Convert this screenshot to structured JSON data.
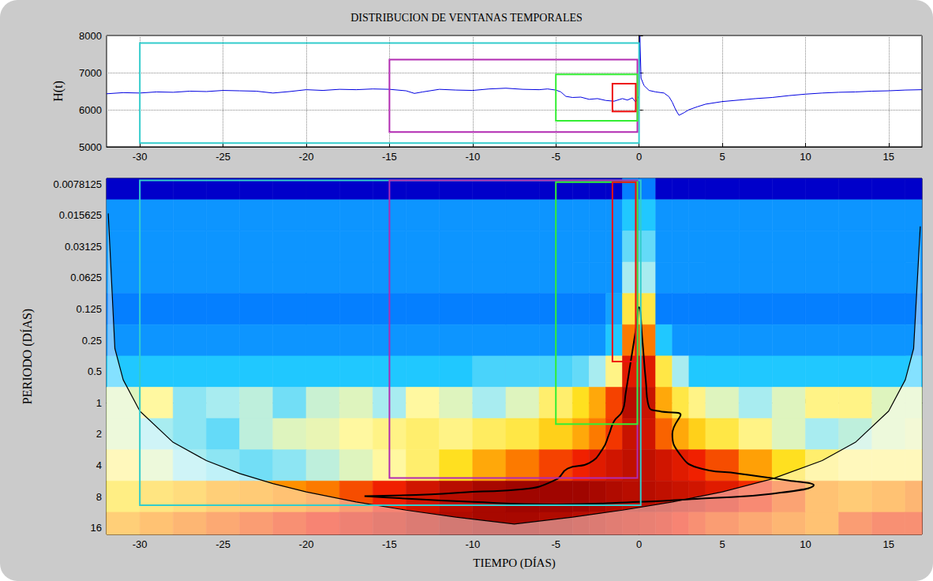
{
  "chart_data": [
    {
      "type": "line",
      "title": "DISTRIBUCION DE VENTANAS TEMPORALES",
      "ylabel": "H(t)",
      "x": [
        -32,
        -31,
        -30,
        -29,
        -28,
        -27,
        -26,
        -25,
        -24,
        -23,
        -22,
        -21,
        -20,
        -19,
        -18,
        -17,
        -16,
        -15,
        -14,
        -13.5,
        -13,
        -12,
        -11,
        -10,
        -9,
        -8,
        -7,
        -6,
        -5.5,
        -5,
        -4.7,
        -4.4,
        -4,
        -3.5,
        -3,
        -2.5,
        -2,
        -1.5,
        -1,
        -0.7,
        -0.4,
        -0.2,
        0,
        0.05,
        0.12,
        0.3,
        0.6,
        1,
        1.5,
        1.8,
        2,
        2.2,
        2.4,
        2.7,
        3,
        3.5,
        4,
        5,
        6,
        7,
        8,
        9,
        10,
        11,
        12,
        13,
        14,
        15,
        16,
        17
      ],
      "values": [
        6430,
        6460,
        6450,
        6480,
        6470,
        6500,
        6490,
        6520,
        6510,
        6500,
        6450,
        6490,
        6540,
        6520,
        6550,
        6540,
        6560,
        6550,
        6510,
        6440,
        6480,
        6550,
        6530,
        6520,
        6560,
        6580,
        6550,
        6540,
        6560,
        6530,
        6480,
        6360,
        6330,
        6340,
        6280,
        6300,
        6250,
        6230,
        6300,
        6260,
        6320,
        6200,
        6380,
        7980,
        6850,
        6650,
        6520,
        6480,
        6450,
        6350,
        6200,
        6000,
        5850,
        5920,
        6000,
        6080,
        6150,
        6220,
        6260,
        6300,
        6330,
        6380,
        6420,
        6450,
        6470,
        6480,
        6500,
        6510,
        6530,
        6540
      ],
      "color": "#0000e0",
      "xlim": [
        -32,
        17
      ],
      "xticks": [
        -30,
        -25,
        -20,
        -15,
        -10,
        -5,
        0,
        5,
        10,
        15
      ],
      "ylim": [
        5000,
        8000
      ],
      "yticks": [
        5000,
        6000,
        7000,
        8000
      ],
      "grid": true,
      "windows": [
        {
          "color": "#33cccc",
          "xlim": [
            -30,
            0
          ],
          "ylim": [
            5100,
            7800
          ]
        },
        {
          "color": "#b22bb2",
          "xlim": [
            -15,
            -0.1
          ],
          "ylim": [
            5400,
            7350
          ]
        },
        {
          "color": "#33ee33",
          "xlim": [
            -5,
            -0.1
          ],
          "ylim": [
            5700,
            6950
          ]
        },
        {
          "color": "#ee1111",
          "xlim": [
            -1.6,
            -0.2
          ],
          "ylim": [
            5950,
            6700
          ]
        }
      ]
    },
    {
      "type": "heatmap",
      "xlabel": "TIEMPO (DÍAS)",
      "ylabel": "PERIODO (DÍAS)",
      "log": "y",
      "grid": false,
      "xlim": [
        -32,
        17
      ],
      "xticks": [
        -30,
        -25,
        -20,
        -15,
        -10,
        -5,
        0,
        5,
        10,
        15
      ],
      "ylim": [
        0.0069,
        18.5
      ],
      "yticks": [
        0.0078125,
        0.015625,
        0.03125,
        0.0625,
        0.125,
        0.25,
        0.5,
        1,
        2,
        4,
        8,
        16
      ],
      "zlim": [
        0,
        10
      ],
      "time_edges": [
        -32,
        -30,
        -28,
        -26,
        -24,
        -22,
        -20,
        -18,
        -16,
        -14,
        -12,
        -10,
        -8,
        -6,
        -4,
        -3,
        -2,
        -1,
        0,
        1,
        2,
        3,
        4,
        6,
        8,
        10,
        12,
        14,
        16,
        18
      ],
      "period_edges": [
        0.0055243,
        0.0110485,
        0.0220971,
        0.0441942,
        0.0883883,
        0.1767767,
        0.3535534,
        0.7071068,
        1.4142136,
        2.8284271,
        5.6568542,
        11.3137085,
        22.627417
      ],
      "power": [
        [
          1,
          1,
          1,
          1,
          1,
          1,
          1,
          1,
          1,
          1,
          1,
          1,
          1,
          1,
          1,
          1,
          1,
          3,
          3,
          1,
          1,
          1,
          1,
          1,
          1,
          1,
          1,
          1,
          1
        ],
        [
          3.3,
          3.3,
          3.3,
          3.3,
          3.3,
          3.3,
          3.3,
          3.3,
          3.3,
          3.3,
          3.3,
          3.3,
          3.3,
          3.3,
          3.3,
          3.3,
          3.3,
          4,
          4,
          3.3,
          3.3,
          3.3,
          3.3,
          3.3,
          3.3,
          3.3,
          3.3,
          3.3,
          3.3
        ],
        [
          3.3,
          3.3,
          3.3,
          3.3,
          3.3,
          3.3,
          3.3,
          3.3,
          3.3,
          3.3,
          3.3,
          3.3,
          3.3,
          3.3,
          3.3,
          3.3,
          3.3,
          4.5,
          4.5,
          3.3,
          3.3,
          3.3,
          3.3,
          3.3,
          3.3,
          3.3,
          3.3,
          3.3,
          3.3
        ],
        [
          3.3,
          3.3,
          3.3,
          3.3,
          3.3,
          3.3,
          3.3,
          3.3,
          3.3,
          3.3,
          3.3,
          3.3,
          3.3,
          3.3,
          3.3,
          3.3,
          3.3,
          5,
          5,
          3.3,
          3.3,
          3.3,
          3.3,
          3.3,
          3.3,
          3.3,
          3.3,
          3.3,
          3.3
        ],
        [
          3,
          3,
          3,
          3,
          3,
          3,
          3,
          3,
          3,
          3,
          3,
          3,
          3,
          3,
          3,
          3,
          3.5,
          6.5,
          6.5,
          3,
          3,
          3,
          3,
          3,
          3,
          3,
          3,
          3,
          3
        ],
        [
          3.3,
          3.3,
          3.3,
          3.3,
          3.3,
          3.3,
          3.3,
          3.3,
          3.3,
          3.3,
          3.3,
          3.3,
          3.3,
          3.3,
          3.3,
          3.3,
          4,
          8,
          8,
          4,
          3.3,
          3.3,
          3.3,
          3.3,
          3.3,
          3.3,
          3.3,
          3.3,
          3.3
        ],
        [
          4,
          4,
          4,
          4,
          4,
          4,
          4,
          4,
          4,
          4,
          4,
          4.3,
          4.3,
          4.3,
          4.5,
          5,
          6,
          9,
          9,
          6.5,
          5,
          4,
          4,
          4,
          4,
          4,
          4,
          4,
          4
        ],
        [
          5.5,
          5.8,
          4.8,
          5,
          5.2,
          4.6,
          5.3,
          5.5,
          5,
          5.8,
          5.5,
          5,
          5.5,
          6.2,
          6.8,
          7.5,
          8.5,
          9.5,
          9.3,
          7.5,
          6.5,
          6,
          5.5,
          5,
          5.5,
          6,
          6,
          5.5,
          5.5
        ],
        [
          5.5,
          5,
          4.8,
          4.5,
          5.2,
          5.5,
          5.6,
          5.8,
          6,
          6.2,
          6,
          6.3,
          6.5,
          7,
          7.5,
          8,
          8.6,
          9.3,
          9.2,
          8.2,
          7.5,
          7,
          6.5,
          6,
          5.5,
          5,
          5.2,
          5.5,
          5.6
        ],
        [
          6,
          5.5,
          5,
          4.8,
          4.6,
          4.8,
          5.2,
          5.5,
          5.8,
          6.2,
          6.8,
          7.5,
          8,
          8.5,
          8.8,
          9,
          9.2,
          9.4,
          9.4,
          9.2,
          9,
          8.8,
          8.4,
          7.6,
          6.8,
          6.2,
          6,
          6,
          6
        ],
        [
          6.8,
          7,
          7.2,
          7.5,
          7.6,
          7.8,
          8,
          8.4,
          8.8,
          9.2,
          9.5,
          9.7,
          9.8,
          9.8,
          9.8,
          9.7,
          9.6,
          9.5,
          9.5,
          9.4,
          9.3,
          9.2,
          9,
          8.7,
          8.3,
          7.8,
          7.6,
          7.8,
          8
        ],
        [
          7.5,
          7.8,
          8,
          8.2,
          8.4,
          8.6,
          8.8,
          9,
          9.2,
          9.4,
          9.6,
          9.7,
          9.7,
          9.6,
          9.5,
          9.4,
          9.3,
          9.2,
          9.1,
          9,
          8.8,
          8.6,
          8.4,
          8.2,
          8,
          7.8,
          8.4,
          8.6,
          8.6
        ]
      ],
      "cone_of_influence": {
        "x": [
          -31.9,
          -31.5,
          -31,
          -30,
          -28,
          -26,
          -24,
          -22,
          -20,
          -17,
          -14,
          -11,
          -7.5,
          -4,
          -1,
          2,
          5,
          8,
          11,
          13,
          15,
          16,
          16.5,
          16.9
        ],
        "values": [
          0.015,
          0.3,
          0.6,
          1.2,
          2.4,
          3.6,
          4.8,
          6,
          7.2,
          9,
          10.8,
          12.6,
          14.7,
          12.6,
          10.8,
          9,
          7.2,
          5.4,
          3.6,
          2.4,
          1.2,
          0.6,
          0.3,
          0.02
        ]
      },
      "contour": {
        "x": [
          -16.5,
          -12.5,
          -10,
          -7,
          -5,
          -4.3,
          -3,
          -2.2,
          -1.8,
          -1.5,
          -1,
          -0.8,
          -0.5,
          -0.2,
          0,
          0.2,
          0.4,
          0.6,
          1.2,
          2.5,
          2,
          2.5,
          3.5,
          6,
          9,
          10.5,
          8,
          4,
          0,
          -5,
          -10,
          -16.5
        ],
        "values": [
          7.9,
          7.6,
          7.2,
          6.8,
          5.5,
          4.3,
          3.8,
          2.8,
          2,
          1.5,
          1.2,
          0.8,
          0.4,
          0.2,
          0.12,
          0.25,
          0.6,
          1.1,
          1.2,
          1.3,
          2,
          3.2,
          4.2,
          4.8,
          5.6,
          6.2,
          7.5,
          8.3,
          9,
          9.5,
          9,
          7.9
        ]
      },
      "windows": [
        {
          "color": "#33cccc",
          "xlim": [
            -30,
            0.1
          ],
          "ylim": [
            0.0072,
            9.7
          ]
        },
        {
          "color": "#b22bb2",
          "xlim": [
            -15,
            -0.1
          ],
          "ylim": [
            0.0072,
            5.3
          ]
        },
        {
          "color": "#33ee33",
          "xlim": [
            -5,
            -0.1
          ],
          "ylim": [
            0.0075,
            1.6
          ]
        },
        {
          "color": "#ee1111",
          "xlim": [
            -1.6,
            -0.2
          ],
          "ylim": [
            0.0075,
            0.4
          ]
        }
      ]
    }
  ]
}
